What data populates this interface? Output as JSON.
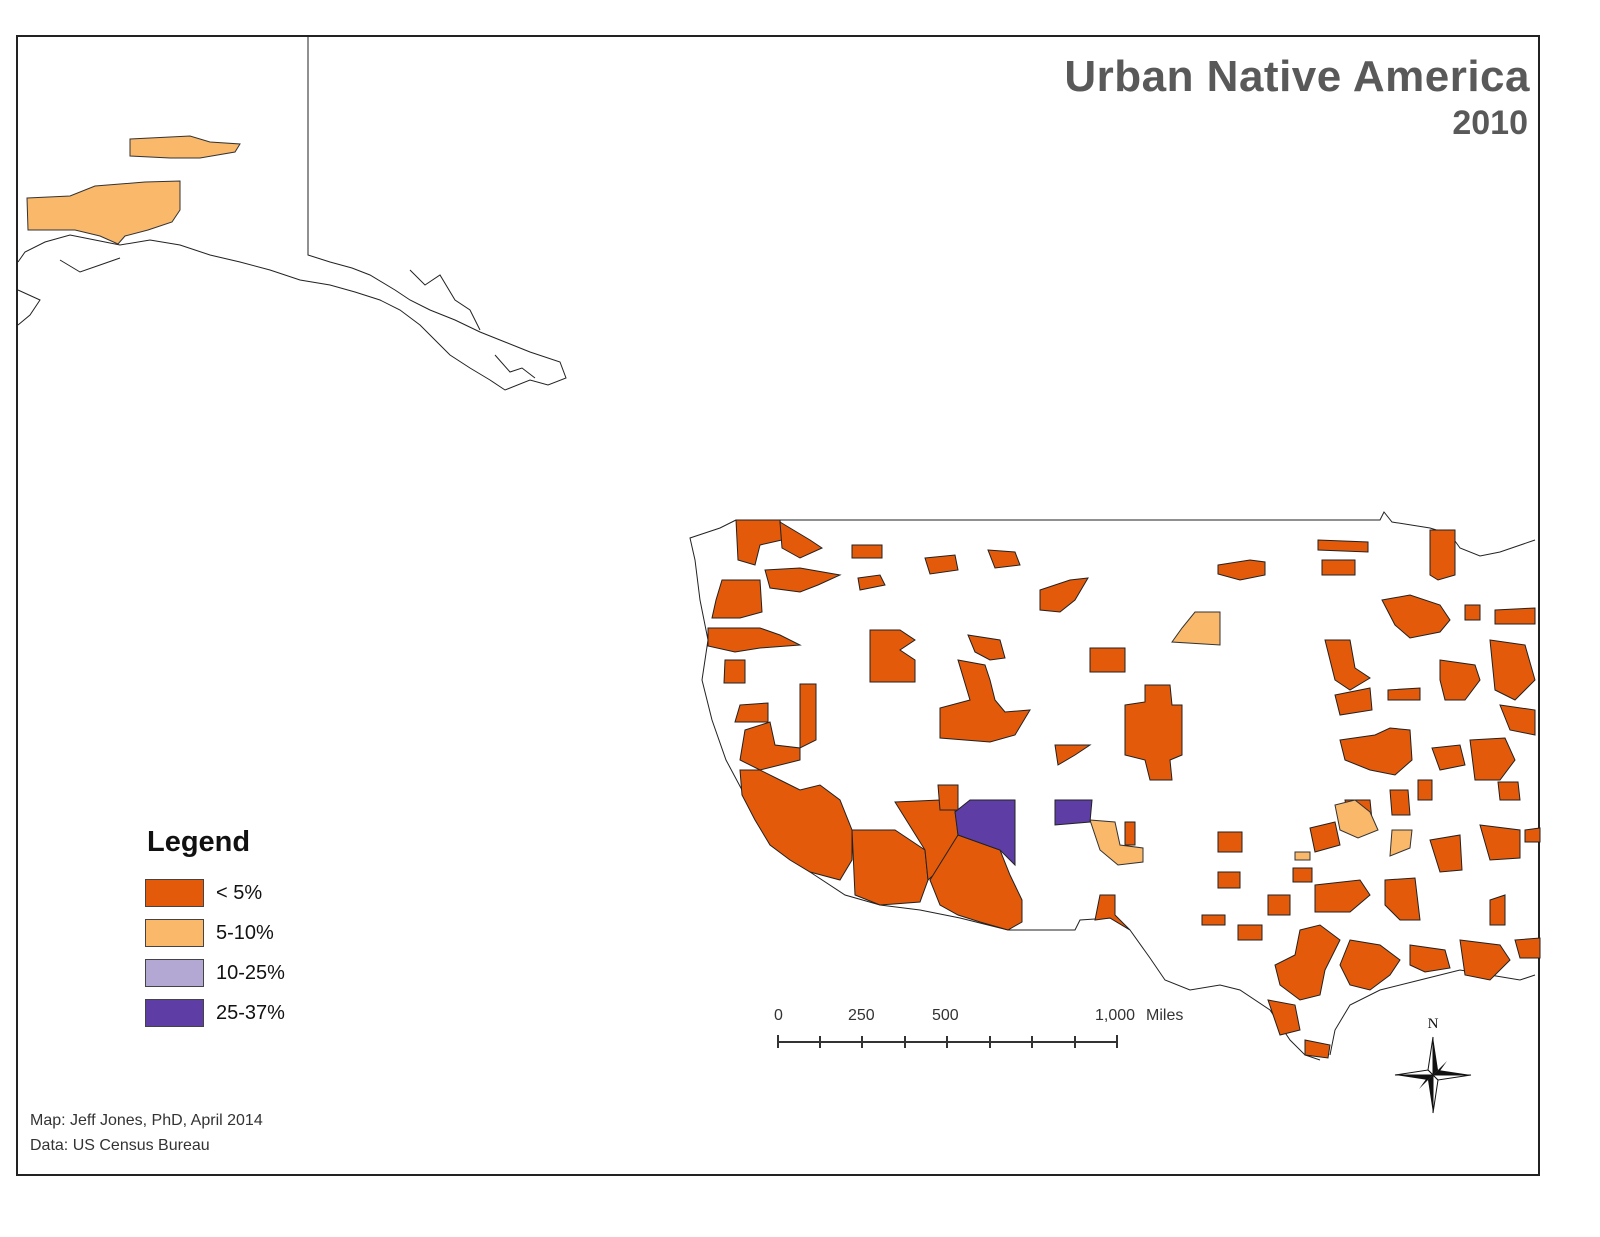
{
  "title": "Urban Native America",
  "subtitle": "2010",
  "legend": {
    "title": "Legend",
    "items": [
      {
        "label": "< 5%",
        "color": "#E35A0A"
      },
      {
        "label": "5-10%",
        "color": "#F9B86A"
      },
      {
        "label": "10-25%",
        "color": "#B3A7D3"
      },
      {
        "label": "25-37%",
        "color": "#5E3EA5"
      }
    ]
  },
  "scale_bar": {
    "labels": [
      "0",
      "250",
      "500",
      "1,000"
    ],
    "unit": "Miles"
  },
  "north_arrow": {
    "label": "N"
  },
  "credits": {
    "map": "Map:  Jeff Jones, PhD, April 2014",
    "data": "Data: US Census Bureau"
  }
}
